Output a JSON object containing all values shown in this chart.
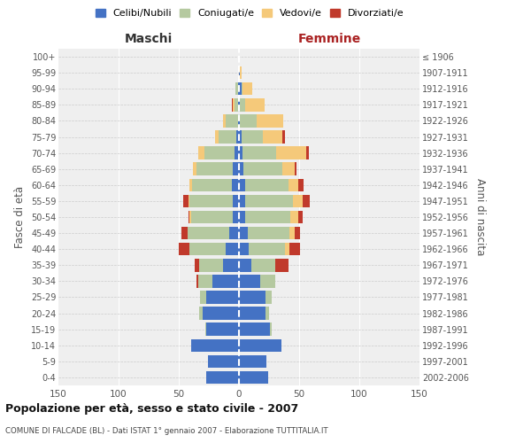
{
  "age_groups": [
    "0-4",
    "5-9",
    "10-14",
    "15-19",
    "20-24",
    "25-29",
    "30-34",
    "35-39",
    "40-44",
    "45-49",
    "50-54",
    "55-59",
    "60-64",
    "65-69",
    "70-74",
    "75-79",
    "80-84",
    "85-89",
    "90-94",
    "95-99",
    "100+"
  ],
  "birth_years": [
    "2002-2006",
    "1997-2001",
    "1992-1996",
    "1987-1991",
    "1982-1986",
    "1977-1981",
    "1972-1976",
    "1967-1971",
    "1962-1966",
    "1957-1961",
    "1952-1956",
    "1947-1951",
    "1942-1946",
    "1937-1941",
    "1932-1936",
    "1927-1931",
    "1922-1926",
    "1917-1921",
    "1912-1916",
    "1907-1911",
    "≤ 1906"
  ],
  "colors": {
    "celibi": "#4472C4",
    "coniugati": "#b5c9a0",
    "vedovi": "#f5c97a",
    "divorziati": "#c0392b"
  },
  "males": {
    "celibi": [
      27,
      26,
      40,
      27,
      30,
      27,
      22,
      13,
      11,
      8,
      5,
      5,
      6,
      5,
      4,
      2,
      1,
      1,
      1,
      0,
      0
    ],
    "coniugati": [
      0,
      0,
      0,
      1,
      3,
      5,
      12,
      20,
      30,
      35,
      35,
      36,
      33,
      30,
      25,
      15,
      10,
      3,
      2,
      0,
      0
    ],
    "vedovi": [
      0,
      0,
      0,
      0,
      0,
      0,
      0,
      0,
      0,
      0,
      1,
      1,
      2,
      3,
      5,
      3,
      2,
      1,
      0,
      0,
      0
    ],
    "divorziati": [
      0,
      0,
      0,
      0,
      0,
      0,
      1,
      4,
      9,
      5,
      1,
      4,
      0,
      0,
      0,
      0,
      0,
      1,
      0,
      0,
      0
    ]
  },
  "females": {
    "nubili": [
      24,
      23,
      35,
      26,
      22,
      22,
      18,
      10,
      8,
      7,
      5,
      5,
      5,
      4,
      3,
      2,
      1,
      1,
      2,
      1,
      0
    ],
    "coniugate": [
      0,
      0,
      0,
      1,
      3,
      5,
      12,
      20,
      30,
      35,
      38,
      40,
      36,
      32,
      28,
      18,
      14,
      4,
      1,
      0,
      0
    ],
    "vedove": [
      0,
      0,
      0,
      0,
      0,
      0,
      0,
      0,
      4,
      4,
      6,
      8,
      8,
      10,
      25,
      16,
      22,
      16,
      8,
      1,
      0
    ],
    "divorziate": [
      0,
      0,
      0,
      0,
      0,
      0,
      0,
      11,
      9,
      5,
      4,
      6,
      5,
      2,
      2,
      2,
      0,
      0,
      0,
      0,
      0
    ]
  },
  "title": "Popolazione per età, sesso e stato civile - 2007",
  "subtitle": "COMUNE DI FALCADE (BL) - Dati ISTAT 1° gennaio 2007 - Elaborazione TUTTITALIA.IT",
  "ylabel_left": "Fasce di età",
  "ylabel_right": "Anni di nascita",
  "xlabel_left": "Maschi",
  "xlabel_right": "Femmine",
  "xlim": 150,
  "legend_labels": [
    "Celibi/Nubili",
    "Coniugati/e",
    "Vedovi/e",
    "Divorziati/e"
  ],
  "bg_color": "#efefef",
  "grid_color": "#cccccc"
}
